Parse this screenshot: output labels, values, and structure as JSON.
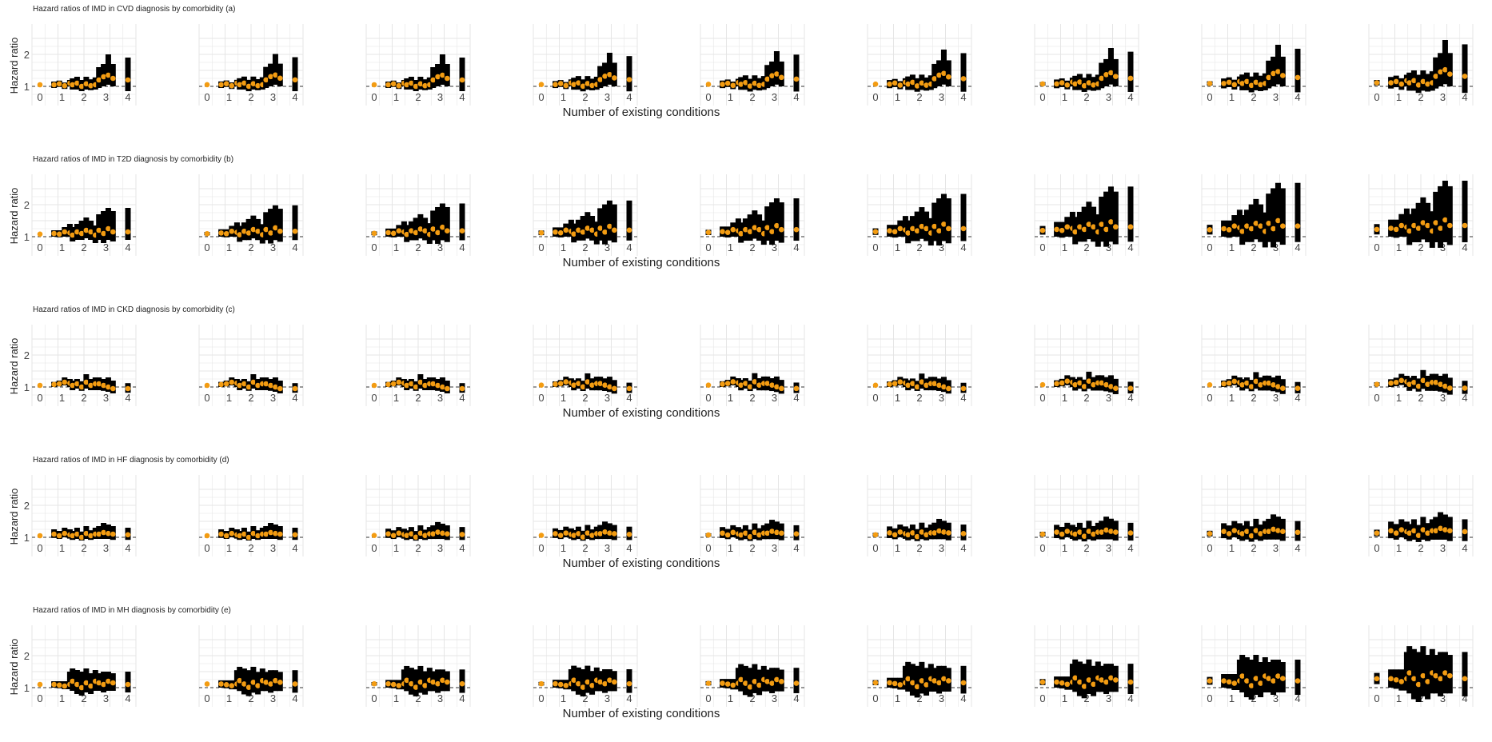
{
  "figure": {
    "y_axis_label": "Hazard ratio",
    "x_axis_label": "Number of existing conditions",
    "colors": {
      "point": "#f39c12",
      "interval": "#000000",
      "grid": "#e5e5e5",
      "reference": "#333333"
    }
  },
  "chart_data": [
    {
      "type": "scatter",
      "title": "Hazard ratios of IMD in CVD diagnosis by comorbidity (a)",
      "xlabel": "Number of existing conditions",
      "ylabel": "Hazard ratio",
      "x_ticks": [
        "0",
        "1",
        "2",
        "3",
        "4"
      ],
      "y_ticks": [
        "1",
        "2"
      ],
      "ylim": [
        0.5,
        2.8
      ],
      "reference_line": 1,
      "panel_scale": [
        1.0,
        1.01,
        1.0,
        1.04,
        1.08,
        1.12,
        1.16,
        1.24,
        1.36
      ],
      "groups": {
        "0": [
          [
            1.05,
            1.02,
            1.08
          ]
        ],
        "1": [
          [
            1.05,
            0.95,
            1.15
          ],
          [
            1.08,
            0.98,
            1.18
          ],
          [
            1.02,
            0.92,
            1.12
          ],
          [
            1.1,
            1.0,
            1.2
          ]
        ],
        "2": [
          [
            1.05,
            0.9,
            1.25
          ],
          [
            1.1,
            0.9,
            1.3
          ],
          [
            1.0,
            0.85,
            1.2
          ],
          [
            1.08,
            0.9,
            1.3
          ],
          [
            1.02,
            0.88,
            1.22
          ],
          [
            1.05,
            0.9,
            1.28
          ]
        ],
        "3": [
          [
            1.2,
            0.95,
            1.6
          ],
          [
            1.3,
            1.0,
            1.7
          ],
          [
            1.35,
            1.05,
            2.0
          ],
          [
            1.25,
            1.0,
            1.7
          ]
        ],
        "4": [
          [
            1.2,
            0.85,
            1.9
          ]
        ]
      }
    },
    {
      "type": "scatter",
      "title": "Hazard ratios of IMD in T2D diagnosis by comorbidity (b)",
      "xlabel": "Number of existing conditions",
      "ylabel": "Hazard ratio",
      "x_ticks": [
        "0",
        "1",
        "2",
        "3",
        "4"
      ],
      "y_ticks": [
        "1",
        "2"
      ],
      "ylim": [
        0.5,
        2.8
      ],
      "reference_line": 1,
      "panel_scale": [
        1.0,
        1.07,
        1.12,
        1.2,
        1.26,
        1.38,
        1.58,
        1.68,
        1.74
      ],
      "groups": {
        "0": [
          [
            1.08,
            1.04,
            1.12
          ]
        ],
        "1": [
          [
            1.1,
            1.0,
            1.2
          ],
          [
            1.08,
            0.98,
            1.2
          ],
          [
            1.15,
            1.0,
            1.3
          ],
          [
            1.12,
            1.0,
            1.4
          ]
        ],
        "2": [
          [
            1.05,
            0.85,
            1.3
          ],
          [
            1.15,
            0.9,
            1.4
          ],
          [
            1.1,
            0.9,
            1.5
          ],
          [
            1.2,
            0.95,
            1.6
          ],
          [
            1.15,
            0.9,
            1.5
          ],
          [
            1.05,
            0.8,
            1.35
          ]
        ],
        "3": [
          [
            1.2,
            0.9,
            1.7
          ],
          [
            1.1,
            0.8,
            1.8
          ],
          [
            1.25,
            0.9,
            1.9
          ],
          [
            1.15,
            0.85,
            1.8
          ]
        ],
        "4": [
          [
            1.15,
            0.9,
            1.9
          ]
        ]
      }
    },
    {
      "type": "scatter",
      "title": "Hazard ratios of IMD in CKD diagnosis by comorbidity (c)",
      "xlabel": "Number of existing conditions",
      "ylabel": "Hazard ratio",
      "x_ticks": [
        "0",
        "1",
        "2",
        "3",
        "4"
      ],
      "y_ticks": [
        "1",
        "2"
      ],
      "ylim": [
        0.5,
        2.8
      ],
      "reference_line": 1,
      "panel_scale": [
        1.0,
        1.0,
        1.0,
        1.04,
        1.05,
        1.03,
        1.12,
        1.1,
        1.2
      ],
      "groups": {
        "0": [
          [
            1.05,
            1.02,
            1.08
          ]
        ],
        "1": [
          [
            1.08,
            1.0,
            1.16
          ],
          [
            1.1,
            1.02,
            1.2
          ],
          [
            1.15,
            1.05,
            1.3
          ],
          [
            1.12,
            1.0,
            1.25
          ]
        ],
        "2": [
          [
            1.05,
            0.9,
            1.2
          ],
          [
            1.1,
            0.95,
            1.25
          ],
          [
            1.0,
            0.88,
            1.18
          ],
          [
            1.15,
            0.95,
            1.4
          ],
          [
            1.05,
            0.9,
            1.25
          ],
          [
            1.1,
            0.9,
            1.3
          ]
        ],
        "3": [
          [
            1.1,
            0.9,
            1.3
          ],
          [
            1.05,
            0.88,
            1.25
          ],
          [
            1.0,
            0.85,
            1.3
          ],
          [
            0.95,
            0.8,
            1.2
          ]
        ],
        "4": [
          [
            0.95,
            0.82,
            1.12
          ]
        ]
      }
    },
    {
      "type": "scatter",
      "title": "Hazard ratios of IMD in HF diagnosis by comorbidity (d)",
      "xlabel": "Number of existing conditions",
      "ylabel": "Hazard ratio",
      "x_ticks": [
        "0",
        "1",
        "2",
        "3",
        "4"
      ],
      "y_ticks": [
        "1",
        "2"
      ],
      "ylim": [
        0.5,
        2.8
      ],
      "reference_line": 1,
      "panel_scale": [
        1.0,
        1.0,
        1.04,
        1.06,
        1.14,
        1.18,
        1.28,
        1.38,
        1.48
      ],
      "groups": {
        "0": [
          [
            1.05,
            1.02,
            1.08
          ]
        ],
        "1": [
          [
            1.1,
            0.98,
            1.25
          ],
          [
            1.05,
            0.95,
            1.2
          ],
          [
            1.12,
            1.0,
            1.3
          ],
          [
            1.08,
            0.96,
            1.25
          ]
        ],
        "2": [
          [
            1.05,
            0.92,
            1.2
          ],
          [
            1.1,
            0.95,
            1.3
          ],
          [
            1.0,
            0.9,
            1.18
          ],
          [
            1.12,
            0.95,
            1.35
          ],
          [
            1.05,
            0.92,
            1.22
          ],
          [
            1.1,
            0.95,
            1.3
          ]
        ],
        "3": [
          [
            1.1,
            0.95,
            1.35
          ],
          [
            1.15,
            0.95,
            1.45
          ],
          [
            1.12,
            0.95,
            1.4
          ],
          [
            1.1,
            0.92,
            1.35
          ]
        ],
        "4": [
          [
            1.08,
            0.92,
            1.3
          ]
        ]
      }
    },
    {
      "type": "scatter",
      "title": "Hazard ratios of IMD in MH diagnosis by comorbidity (e)",
      "xlabel": "Number of existing conditions",
      "ylabel": "Hazard ratio",
      "x_ticks": [
        "0",
        "1",
        "2",
        "3",
        "4"
      ],
      "y_ticks": [
        "1",
        "2"
      ],
      "ylim": [
        0.5,
        2.8
      ],
      "reference_line": 1,
      "panel_scale": [
        1.0,
        1.06,
        1.09,
        1.1,
        1.16,
        1.24,
        1.33,
        1.5,
        1.82
      ],
      "groups": {
        "0": [
          [
            1.1,
            1.06,
            1.14
          ]
        ],
        "1": [
          [
            1.1,
            1.0,
            1.2
          ],
          [
            1.08,
            0.98,
            1.2
          ],
          [
            1.05,
            0.95,
            1.2
          ],
          [
            1.1,
            0.95,
            1.5
          ]
        ],
        "2": [
          [
            1.2,
            0.9,
            1.6
          ],
          [
            1.1,
            0.8,
            1.55
          ],
          [
            1.0,
            0.75,
            1.5
          ],
          [
            1.15,
            0.85,
            1.6
          ],
          [
            1.05,
            0.8,
            1.45
          ],
          [
            1.2,
            0.9,
            1.55
          ]
        ],
        "3": [
          [
            1.15,
            0.9,
            1.45
          ],
          [
            1.1,
            0.85,
            1.5
          ],
          [
            1.2,
            0.9,
            1.5
          ],
          [
            1.15,
            0.9,
            1.45
          ]
        ],
        "4": [
          [
            1.1,
            0.85,
            1.5
          ]
        ]
      }
    }
  ]
}
